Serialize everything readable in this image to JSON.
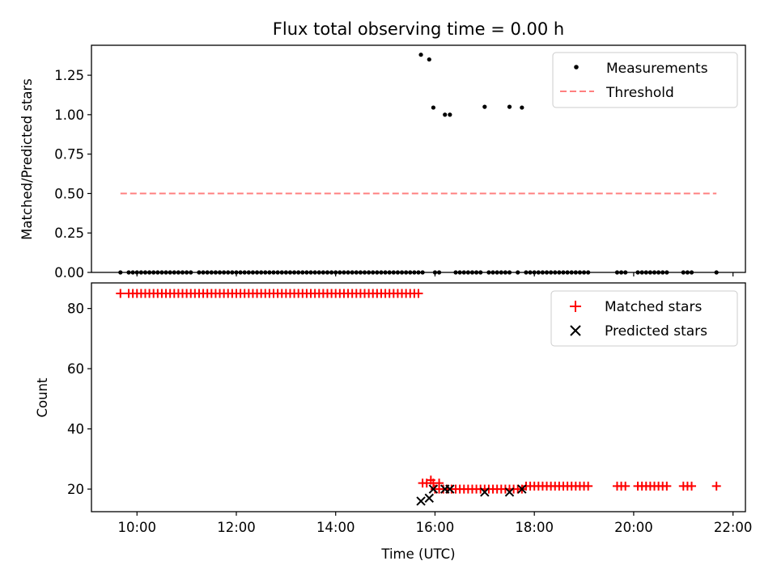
{
  "title": "Flux total observing time = 0.00 h",
  "colors": {
    "measurement": "#000000",
    "threshold": "#ff8080",
    "matched": "#ff0000",
    "predicted": "#000000"
  },
  "chart_data": [
    {
      "type": "scatter",
      "title": "Flux total observing time = 0.00 h",
      "xlabel": "",
      "ylabel": "Matched/Predicted stars",
      "xlim": [
        "09:05",
        "22:15"
      ],
      "ylim": [
        0,
        1.44
      ],
      "x_ticks": [
        "10:00",
        "12:00",
        "14:00",
        "16:00",
        "18:00",
        "20:00",
        "22:00"
      ],
      "x_tick_labels_visible": false,
      "y_ticks": [
        0.0,
        0.25,
        0.5,
        0.75,
        1.0,
        1.25
      ],
      "y_tick_labels": [
        "0.00",
        "0.25",
        "0.50",
        "0.75",
        "1.00",
        "1.25"
      ],
      "grid": false,
      "legend": "top-right",
      "legend_entries": [
        "Measurements",
        "Threshold"
      ],
      "series": [
        {
          "name": "Measurements",
          "kind": "points",
          "zero_points_x": [
            "09:40",
            "09:50",
            "09:55",
            "10:00",
            "10:05",
            "10:10",
            "10:15",
            "10:20",
            "10:25",
            "10:30",
            "10:35",
            "10:40",
            "10:45",
            "10:50",
            "10:55",
            "11:00",
            "11:05",
            "11:15",
            "11:20",
            "11:25",
            "11:30",
            "11:35",
            "11:40",
            "11:45",
            "11:50",
            "11:55",
            "12:00",
            "12:05",
            "12:10",
            "12:15",
            "12:20",
            "12:25",
            "12:30",
            "12:35",
            "12:40",
            "12:45",
            "12:50",
            "12:55",
            "13:00",
            "13:05",
            "13:10",
            "13:15",
            "13:20",
            "13:25",
            "13:30",
            "13:35",
            "13:40",
            "13:45",
            "13:50",
            "13:55",
            "14:00",
            "14:05",
            "14:10",
            "14:15",
            "14:20",
            "14:25",
            "14:30",
            "14:35",
            "14:40",
            "14:45",
            "14:50",
            "14:55",
            "15:00",
            "15:05",
            "15:10",
            "15:15",
            "15:20",
            "15:25",
            "15:30",
            "15:35",
            "15:40",
            "15:45",
            "16:00",
            "16:05",
            "16:25",
            "16:30",
            "16:35",
            "16:40",
            "16:45",
            "16:50",
            "16:55",
            "17:05",
            "17:10",
            "17:15",
            "17:20",
            "17:25",
            "17:30",
            "17:40",
            "17:50",
            "17:55",
            "18:00",
            "18:05",
            "18:10",
            "18:15",
            "18:20",
            "18:25",
            "18:30",
            "18:35",
            "18:40",
            "18:45",
            "18:50",
            "18:55",
            "19:00",
            "19:05",
            "19:40",
            "19:45",
            "19:50",
            "20:05",
            "20:10",
            "20:15",
            "20:20",
            "20:25",
            "20:30",
            "20:35",
            "20:40",
            "21:00",
            "21:05",
            "21:10",
            "21:40"
          ],
          "nonzero_points": [
            {
              "x": "15:43",
              "y": 1.38
            },
            {
              "x": "15:53",
              "y": 1.35
            },
            {
              "x": "15:58",
              "y": 1.045
            },
            {
              "x": "16:12",
              "y": 1.0
            },
            {
              "x": "16:18",
              "y": 1.0
            },
            {
              "x": "17:00",
              "y": 1.05
            },
            {
              "x": "17:30",
              "y": 1.05
            },
            {
              "x": "17:45",
              "y": 1.045
            }
          ]
        },
        {
          "name": "Threshold",
          "kind": "dashed-line",
          "x": [
            "09:40",
            "21:40"
          ],
          "y": [
            0.5,
            0.5
          ]
        }
      ]
    },
    {
      "type": "scatter",
      "title": "",
      "xlabel": "Time (UTC)",
      "ylabel": "Count",
      "xlim": [
        "09:05",
        "22:15"
      ],
      "ylim": [
        12.5,
        88.5
      ],
      "x_ticks": [
        "10:00",
        "12:00",
        "14:00",
        "16:00",
        "18:00",
        "20:00",
        "22:00"
      ],
      "x_tick_labels": [
        "10:00",
        "12:00",
        "14:00",
        "16:00",
        "18:00",
        "20:00",
        "22:00"
      ],
      "y_ticks": [
        20,
        40,
        60,
        80
      ],
      "y_tick_labels": [
        "20",
        "40",
        "60",
        "80"
      ],
      "grid": false,
      "legend": "top-right",
      "legend_entries": [
        "Matched stars",
        "Predicted stars"
      ],
      "series": [
        {
          "name": "Matched stars",
          "marker": "plus",
          "groups": [
            {
              "y": 85,
              "x_start": "09:40",
              "x_end": "15:40",
              "step_min": 5,
              "skip": [
                "09:45"
              ]
            },
            {
              "y": 22,
              "x": [
                "15:45",
                "15:50",
                "15:58",
                "16:05"
              ]
            },
            {
              "y": 23,
              "x": [
                "15:55"
              ]
            },
            {
              "y": 20,
              "x_start": "16:00",
              "x_end": "17:45",
              "step_min": 5
            },
            {
              "y": 21,
              "x_start": "17:50",
              "x_end": "19:05",
              "step_min": 5
            },
            {
              "y": 21,
              "x": [
                "19:40",
                "19:45",
                "19:50",
                "20:05",
                "20:10",
                "20:15",
                "20:20",
                "20:25",
                "20:30",
                "20:35",
                "20:40",
                "21:00",
                "21:05",
                "21:10",
                "21:40"
              ]
            }
          ]
        },
        {
          "name": "Predicted stars",
          "marker": "x",
          "points": [
            {
              "x": "15:43",
              "y": 16
            },
            {
              "x": "15:53",
              "y": 17
            },
            {
              "x": "15:58",
              "y": 20
            },
            {
              "x": "16:12",
              "y": 20
            },
            {
              "x": "16:18",
              "y": 20
            },
            {
              "x": "17:00",
              "y": 19
            },
            {
              "x": "17:30",
              "y": 19
            },
            {
              "x": "17:45",
              "y": 20
            }
          ]
        }
      ]
    }
  ]
}
